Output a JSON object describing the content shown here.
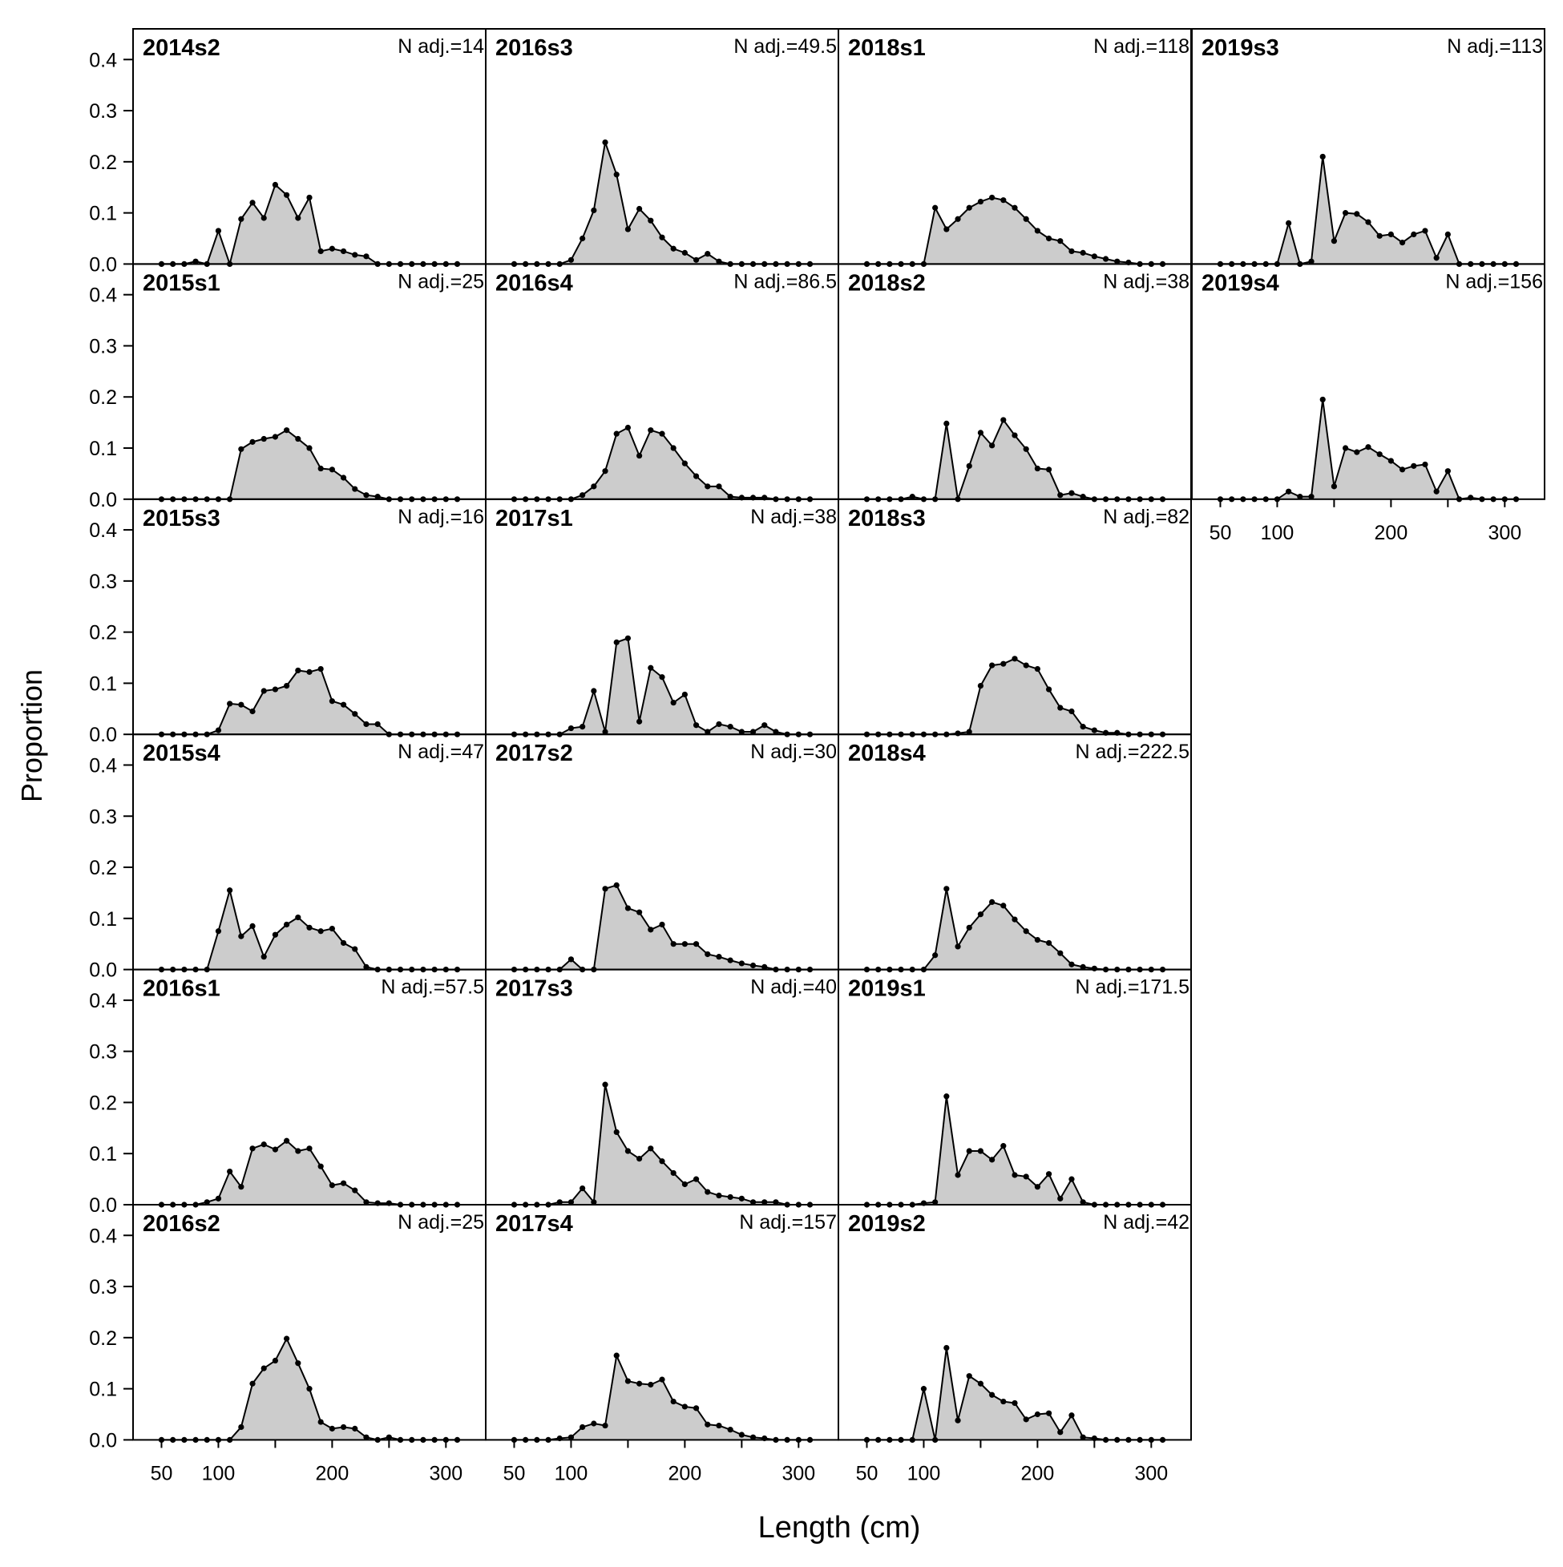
{
  "colors": {
    "fill": "#cccccc",
    "line": "#000000",
    "frame": "#000000",
    "background": "#ffffff"
  },
  "axes": {
    "ylabel": "Proportion",
    "xlabel": "Length (cm)",
    "yticks": [
      0.0,
      0.1,
      0.2,
      0.3,
      0.4
    ],
    "ytick_labels": [
      "0.0",
      "0.1",
      "0.2",
      "0.3",
      "0.4"
    ],
    "xticks": [
      50,
      100,
      200,
      300
    ],
    "xtick_labels": [
      "50",
      "100",
      "200",
      "300"
    ],
    "xlim": [
      25,
      335
    ],
    "ylim": [
      0,
      0.46
    ]
  },
  "chart_data": {
    "type": "area",
    "x": [
      50,
      60,
      70,
      80,
      90,
      100,
      110,
      120,
      130,
      140,
      150,
      160,
      170,
      180,
      190,
      200,
      210,
      220,
      230,
      240,
      250,
      260,
      270,
      280,
      290,
      300,
      310
    ],
    "panels": [
      {
        "title": "2014s2",
        "n_label": "N adj.=14",
        "values": [
          0,
          0,
          0,
          0.005,
          0,
          0.065,
          0,
          0.088,
          0.12,
          0.09,
          0.155,
          0.135,
          0.09,
          0.13,
          0.025,
          0.03,
          0.025,
          0.018,
          0.015,
          0,
          0,
          0,
          0,
          0,
          0,
          0,
          0
        ]
      },
      {
        "title": "2015s1",
        "n_label": "N adj.=25",
        "values": [
          0,
          0,
          0,
          0,
          0,
          0,
          0,
          0.098,
          0.112,
          0.118,
          0.122,
          0.135,
          0.118,
          0.1,
          0.06,
          0.058,
          0.042,
          0.02,
          0.008,
          0.005,
          0,
          0,
          0,
          0,
          0,
          0,
          0
        ]
      },
      {
        "title": "2015s3",
        "n_label": "N adj.=16",
        "values": [
          0,
          0,
          0,
          0,
          0,
          0.008,
          0.06,
          0.058,
          0.045,
          0.085,
          0.088,
          0.095,
          0.125,
          0.122,
          0.128,
          0.065,
          0.058,
          0.04,
          0.02,
          0.02,
          0,
          0,
          0,
          0,
          0,
          0,
          0
        ]
      },
      {
        "title": "2015s4",
        "n_label": "N adj.=47",
        "values": [
          0,
          0,
          0,
          0,
          0,
          0.075,
          0.155,
          0.065,
          0.085,
          0.025,
          0.068,
          0.088,
          0.102,
          0.082,
          0.075,
          0.08,
          0.052,
          0.04,
          0.005,
          0,
          0,
          0,
          0,
          0,
          0,
          0,
          0
        ]
      },
      {
        "title": "2016s1",
        "n_label": "N adj.=57.5",
        "values": [
          0,
          0,
          0,
          0,
          0.005,
          0.012,
          0.065,
          0.035,
          0.11,
          0.118,
          0.108,
          0.125,
          0.105,
          0.11,
          0.075,
          0.038,
          0.042,
          0.028,
          0.005,
          0.003,
          0.003,
          0,
          0,
          0,
          0,
          0,
          0
        ]
      },
      {
        "title": "2016s2",
        "n_label": "N adj.=25",
        "values": [
          0,
          0,
          0,
          0,
          0,
          0,
          0,
          0.025,
          0.11,
          0.14,
          0.155,
          0.198,
          0.15,
          0.1,
          0.035,
          0.022,
          0.025,
          0.022,
          0.005,
          0,
          0.005,
          0,
          0,
          0,
          0,
          0,
          0
        ]
      },
      {
        "title": "2016s3",
        "n_label": "N adj.=49.5",
        "values": [
          0,
          0,
          0,
          0,
          0,
          0.008,
          0.05,
          0.105,
          0.238,
          0.175,
          0.068,
          0.108,
          0.085,
          0.052,
          0.03,
          0.022,
          0.008,
          0.02,
          0.005,
          0,
          0,
          0,
          0,
          0,
          0,
          0,
          0
        ]
      },
      {
        "title": "2016s4",
        "n_label": "N adj.=86.5",
        "values": [
          0,
          0,
          0,
          0,
          0,
          0,
          0.008,
          0.025,
          0.055,
          0.128,
          0.14,
          0.085,
          0.135,
          0.128,
          0.1,
          0.07,
          0.045,
          0.025,
          0.025,
          0.005,
          0.003,
          0.003,
          0.003,
          0,
          0,
          0,
          0
        ]
      },
      {
        "title": "2017s1",
        "n_label": "N adj.=38",
        "values": [
          0,
          0,
          0,
          0,
          0,
          0.012,
          0.015,
          0.085,
          0.005,
          0.18,
          0.188,
          0.025,
          0.13,
          0.112,
          0.062,
          0.078,
          0.018,
          0.005,
          0.02,
          0.015,
          0.005,
          0.005,
          0.018,
          0.005,
          0,
          0,
          0
        ]
      },
      {
        "title": "2017s2",
        "n_label": "N adj.=30",
        "values": [
          0,
          0,
          0,
          0,
          0,
          0.02,
          0,
          0,
          0.158,
          0.165,
          0.12,
          0.112,
          0.078,
          0.088,
          0.05,
          0.05,
          0.05,
          0.03,
          0.025,
          0.018,
          0.012,
          0.008,
          0.005,
          0,
          0,
          0,
          0
        ]
      },
      {
        "title": "2017s3",
        "n_label": "N adj.=40",
        "values": [
          0,
          0,
          0,
          0,
          0.005,
          0.005,
          0.032,
          0.005,
          0.235,
          0.142,
          0.105,
          0.09,
          0.11,
          0.085,
          0.062,
          0.04,
          0.05,
          0.025,
          0.018,
          0.015,
          0.012,
          0.005,
          0.005,
          0.005,
          0,
          0,
          0
        ]
      },
      {
        "title": "2017s4",
        "n_label": "N adj.=157",
        "values": [
          0,
          0,
          0,
          0,
          0.003,
          0.005,
          0.025,
          0.032,
          0.028,
          0.165,
          0.115,
          0.11,
          0.108,
          0.118,
          0.075,
          0.065,
          0.062,
          0.03,
          0.028,
          0.02,
          0.01,
          0.005,
          0.003,
          0,
          0,
          0,
          0
        ]
      },
      {
        "title": "2018s1",
        "n_label": "N adj.=118",
        "values": [
          0,
          0,
          0,
          0,
          0,
          0,
          0.11,
          0.068,
          0.088,
          0.11,
          0.122,
          0.13,
          0.125,
          0.11,
          0.088,
          0.065,
          0.05,
          0.045,
          0.025,
          0.022,
          0.015,
          0.01,
          0.005,
          0.003,
          0,
          0,
          0
        ]
      },
      {
        "title": "2018s2",
        "n_label": "N adj.=38",
        "values": [
          0,
          0,
          0,
          0,
          0.005,
          0,
          0,
          0.148,
          0,
          0.065,
          0.13,
          0.105,
          0.155,
          0.125,
          0.098,
          0.06,
          0.058,
          0.008,
          0.012,
          0.005,
          0,
          0,
          0,
          0,
          0,
          0,
          0
        ]
      },
      {
        "title": "2018s3",
        "n_label": "N adj.=82",
        "values": [
          0,
          0,
          0,
          0,
          0,
          0,
          0,
          0,
          0.002,
          0.005,
          0.095,
          0.135,
          0.138,
          0.148,
          0.135,
          0.128,
          0.088,
          0.052,
          0.045,
          0.015,
          0.008,
          0.003,
          0.003,
          0,
          0,
          0,
          0
        ]
      },
      {
        "title": "2018s4",
        "n_label": "N adj.=222.5",
        "values": [
          0,
          0,
          0,
          0,
          0,
          0,
          0.028,
          0.158,
          0.045,
          0.082,
          0.108,
          0.132,
          0.125,
          0.098,
          0.075,
          0.058,
          0.052,
          0.032,
          0.01,
          0.005,
          0.002,
          0,
          0,
          0,
          0,
          0,
          0
        ]
      },
      {
        "title": "2019s1",
        "n_label": "N adj.=171.5",
        "values": [
          0,
          0,
          0,
          0,
          0,
          0.003,
          0.005,
          0.212,
          0.058,
          0.105,
          0.105,
          0.088,
          0.115,
          0.058,
          0.055,
          0.035,
          0.06,
          0.012,
          0.05,
          0.005,
          0,
          0,
          0,
          0,
          0,
          0,
          0
        ]
      },
      {
        "title": "2019s2",
        "n_label": "N adj.=42",
        "values": [
          0,
          0,
          0,
          0,
          0,
          0.1,
          0,
          0.18,
          0.038,
          0.125,
          0.11,
          0.088,
          0.075,
          0.072,
          0.04,
          0.05,
          0.052,
          0.015,
          0.048,
          0.005,
          0.003,
          0,
          0,
          0,
          0,
          0,
          0
        ]
      },
      {
        "title": "2019s3",
        "n_label": "N adj.=113",
        "values": [
          0,
          0,
          0,
          0,
          0,
          0,
          0.08,
          0,
          0.005,
          0.21,
          0.045,
          0.1,
          0.098,
          0.082,
          0.055,
          0.058,
          0.042,
          0.058,
          0.065,
          0.012,
          0.058,
          0,
          0,
          0,
          0,
          0,
          0
        ]
      },
      {
        "title": "2019s4",
        "n_label": "N adj.=156",
        "values": [
          0,
          0,
          0,
          0,
          0,
          0,
          0.015,
          0.005,
          0.005,
          0.195,
          0.025,
          0.1,
          0.092,
          0.102,
          0.088,
          0.075,
          0.058,
          0.065,
          0.068,
          0.015,
          0.055,
          0,
          0.003,
          0,
          0,
          0,
          0
        ]
      }
    ]
  }
}
